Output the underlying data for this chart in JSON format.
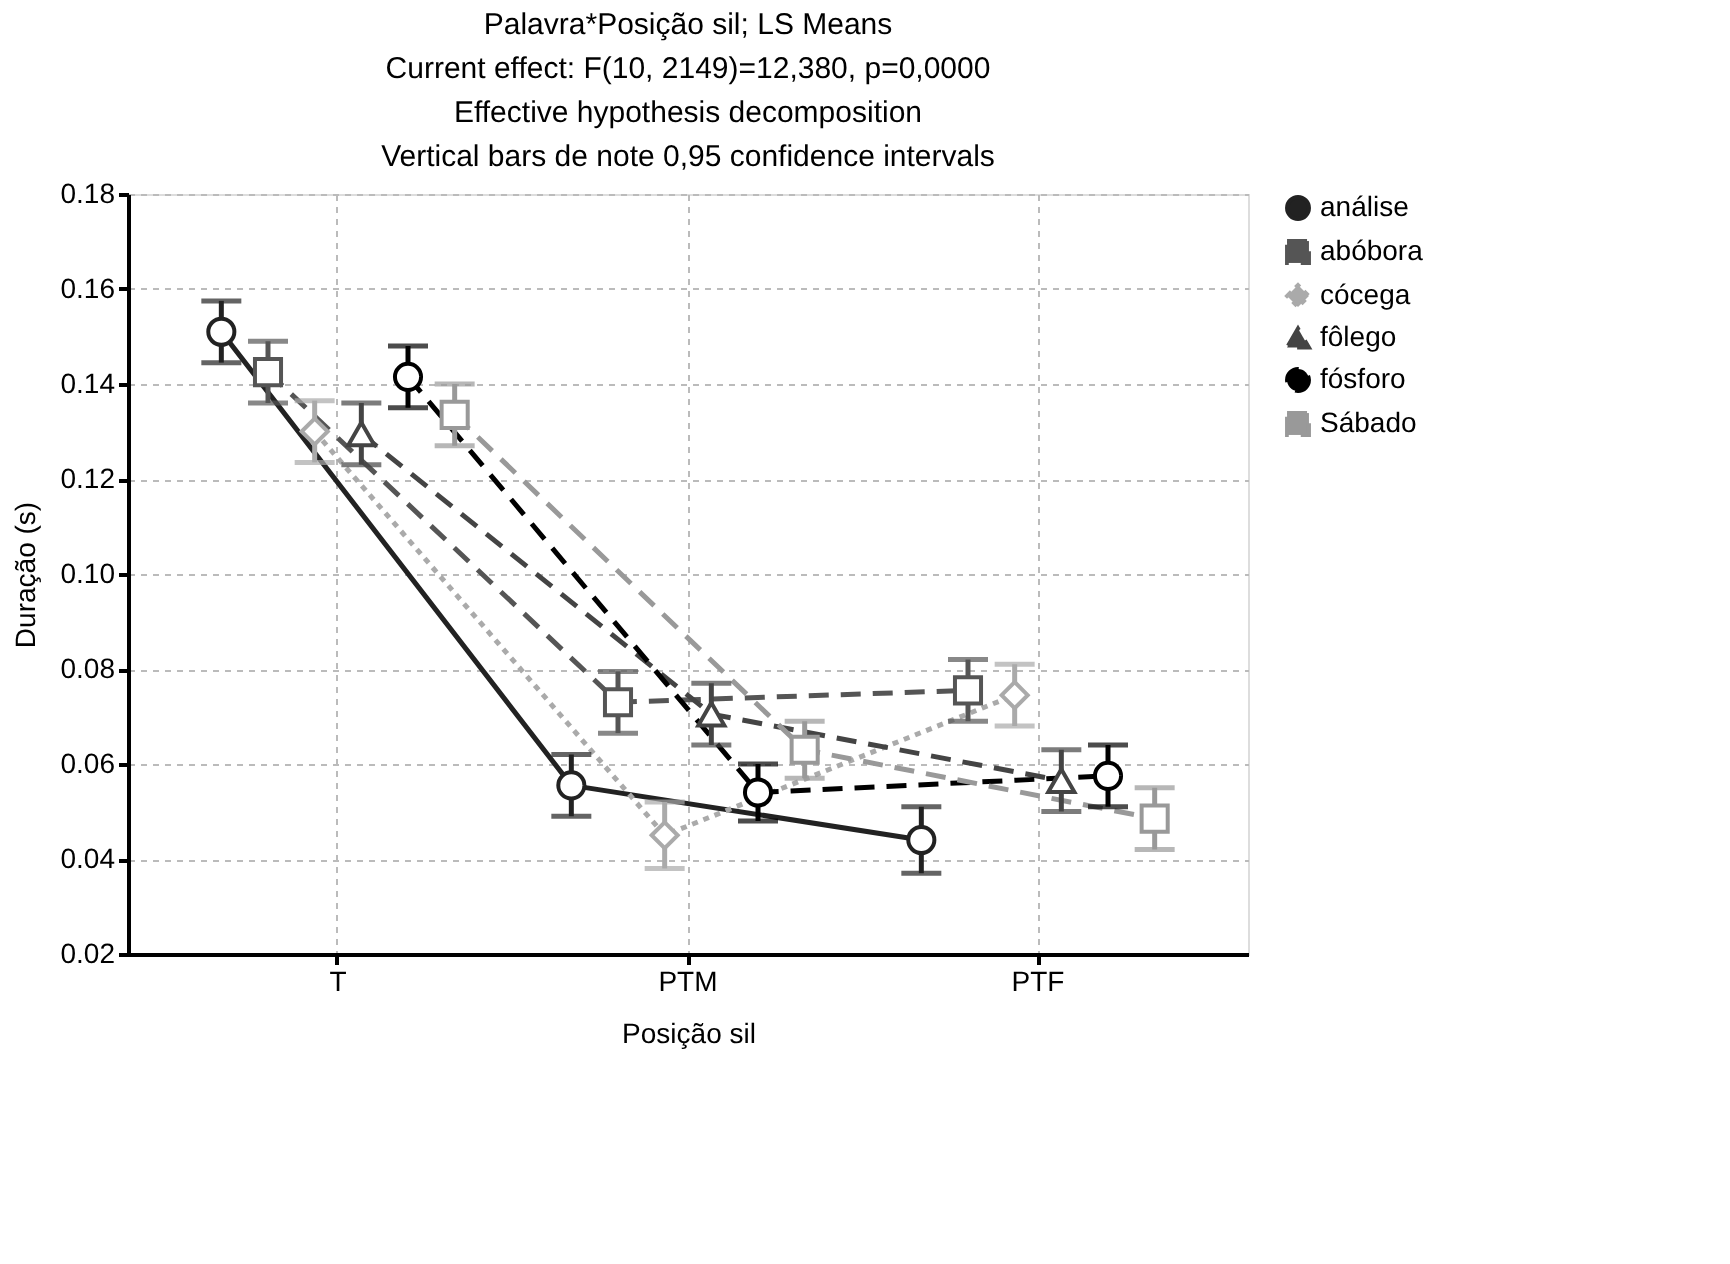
{
  "chart_data": {
    "type": "line",
    "title": "Palavra*Posição sil; LS Means",
    "subtitle": "Current effect: F(10, 2149)=12,380, p=0,0000\nEffective hypothesis decomposition\nVertical bars de note 0,95 confidence intervals",
    "xlabel": "Posição sil",
    "ylabel": "Duração (s)",
    "categories": [
      "T",
      "PTM",
      "PTF"
    ],
    "ylim": [
      0.02,
      0.18
    ],
    "yticks": [
      {
        "value": 0.02,
        "label": "0.02"
      },
      {
        "value": 0.04,
        "label": "0.04"
      },
      {
        "value": 0.06,
        "label": "0.06"
      },
      {
        "value": 0.08,
        "label": "0.08"
      },
      {
        "value": 0.1,
        "label": "0.10"
      },
      {
        "value": 0.12,
        "label": "0.12"
      },
      {
        "value": 0.14,
        "label": "0.14"
      },
      {
        "value": 0.16,
        "label": "0.16"
      },
      {
        "value": 0.18,
        "label": "0.18"
      }
    ],
    "grid": true,
    "legend": "right",
    "series": [
      {
        "name": "análise",
        "color": "#222222",
        "marker": "circle",
        "line_style": "solid",
        "values": [
          0.151,
          0.0555,
          0.044
        ],
        "errors": [
          0.0065,
          0.0065,
          0.007
        ]
      },
      {
        "name": "abóbora",
        "color": "#555555",
        "marker": "square",
        "line_style": "dashed",
        "values": [
          0.1425,
          0.073,
          0.0755
        ],
        "errors": [
          0.0065,
          0.0065,
          0.0065
        ]
      },
      {
        "name": "cócega",
        "color": "#aaaaaa",
        "marker": "diamond",
        "line_style": "dotted",
        "values": [
          0.13,
          0.045,
          0.0745
        ],
        "errors": [
          0.0065,
          0.007,
          0.0065
        ]
      },
      {
        "name": "fôlego",
        "color": "#444444",
        "marker": "triangle",
        "line_style": "dashed",
        "values": [
          0.1295,
          0.0705,
          0.0565
        ],
        "errors": [
          0.0065,
          0.0065,
          0.0065
        ]
      },
      {
        "name": "fósforo",
        "color": "#000000",
        "marker": "circle",
        "line_style": "dashed",
        "values": [
          0.1415,
          0.054,
          0.0575
        ],
        "errors": [
          0.0065,
          0.006,
          0.0065
        ]
      },
      {
        "name": "Sábado",
        "color": "#999999",
        "marker": "square",
        "line_style": "dashed",
        "values": [
          0.1335,
          0.063,
          0.0485
        ],
        "errors": [
          0.0065,
          0.006,
          0.0065
        ]
      }
    ]
  }
}
